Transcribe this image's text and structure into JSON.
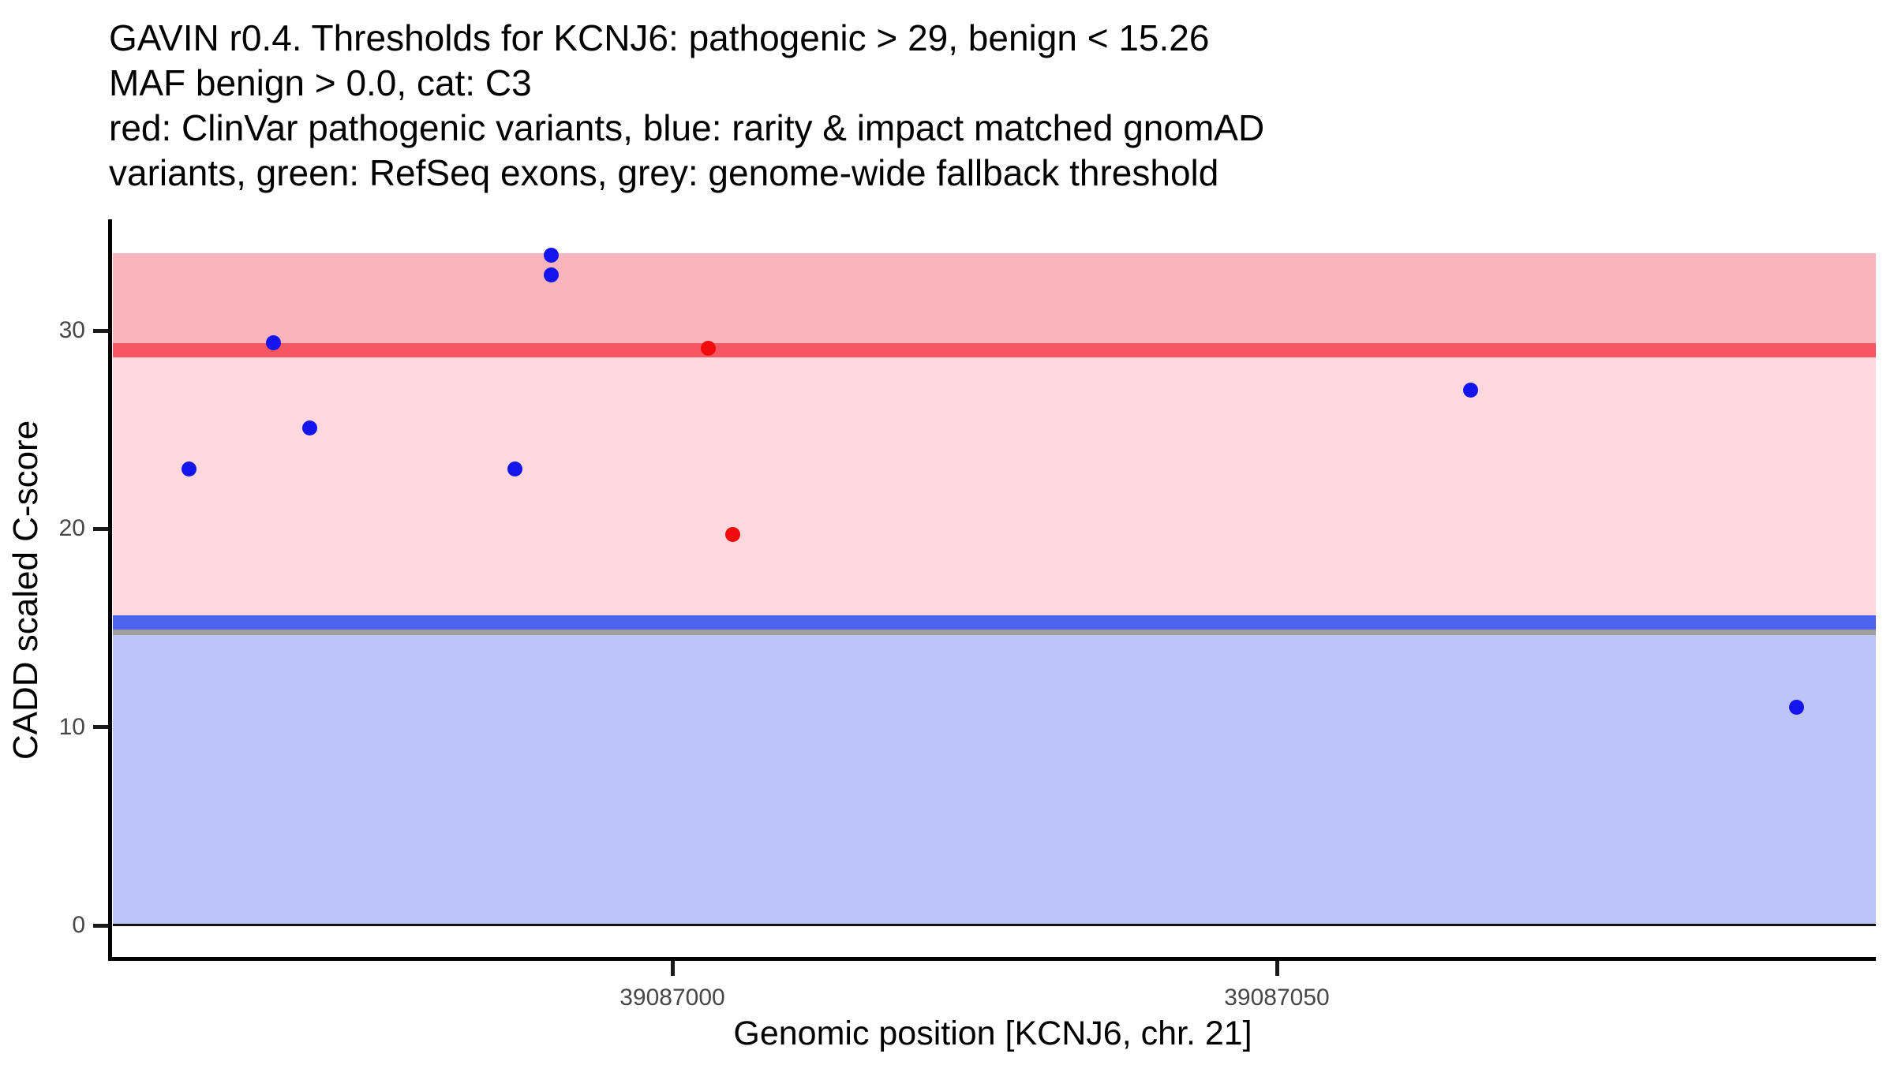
{
  "figure": {
    "title_lines": [
      "GAVIN r0.4. Thresholds for KCNJ6: pathogenic > 29, benign < 15.26",
      "MAF benign > 0.0, cat: C3",
      "red: ClinVar pathogenic variants, blue: rarity & impact matched gnomAD",
      "variants, green: RefSeq exons, grey: genome-wide fallback threshold"
    ]
  },
  "chart_data": {
    "type": "scatter",
    "title": "GAVIN r0.4. Thresholds for KCNJ6: pathogenic > 29, benign < 15.26 MAF benign > 0.0, cat: C3 red: ClinVar pathogenic variants, blue: rarity & impact matched gnomAD variants, green: RefSeq exons, grey: genome-wide fallback threshold",
    "xlabel": "Genomic position [KCNJ6, chr. 21]",
    "ylabel": "CADD scaled C-score",
    "xlim": [
      39086953,
      39087100
    ],
    "ylim": [
      0,
      35.6
    ],
    "grid": false,
    "legend_position": "none",
    "x_ticks": [
      {
        "value": 39087000,
        "label": "39087000"
      },
      {
        "value": 39087050,
        "label": "39087050"
      }
    ],
    "y_ticks": [
      {
        "value": 0,
        "label": "0"
      },
      {
        "value": 10,
        "label": "10"
      },
      {
        "value": 20,
        "label": "20"
      },
      {
        "value": 30,
        "label": "30"
      }
    ],
    "bands": [
      {
        "name": "pathogenic-zone",
        "ymin": 29,
        "ymax": 33.9,
        "color": "#F9B4BC"
      },
      {
        "name": "uncertain-zone",
        "ymin": 15.26,
        "ymax": 29,
        "color": "#FFD8DD"
      },
      {
        "name": "benign-zone",
        "ymin": 0,
        "ymax": 15.26,
        "color": "#BDC4F8"
      }
    ],
    "threshold_lines": [
      {
        "name": "genome-wide-fallback-threshold",
        "value": 15,
        "color": "#9E9E9E"
      },
      {
        "name": "benign-threshold",
        "value": 15.26,
        "color": "#4F64EC"
      },
      {
        "name": "pathogenic-threshold",
        "value": 29,
        "color": "#F95664"
      }
    ],
    "series": [
      {
        "name": "rarity & impact matched gnomAD variants",
        "color": "#1414EE",
        "points": [
          {
            "x": 39086960,
            "y": 23.0
          },
          {
            "x": 39086967,
            "y": 29.4
          },
          {
            "x": 39086970,
            "y": 25.1
          },
          {
            "x": 39086987,
            "y": 23.0
          },
          {
            "x": 39086990,
            "y": 33.8
          },
          {
            "x": 39086990,
            "y": 32.8
          },
          {
            "x": 39087066,
            "y": 27.0
          },
          {
            "x": 39087093,
            "y": 11.0
          }
        ]
      },
      {
        "name": "ClinVar pathogenic variants",
        "color": "#F00C0C",
        "points": [
          {
            "x": 39087003,
            "y": 29.1
          },
          {
            "x": 39087005,
            "y": 19.7
          }
        ]
      }
    ]
  }
}
